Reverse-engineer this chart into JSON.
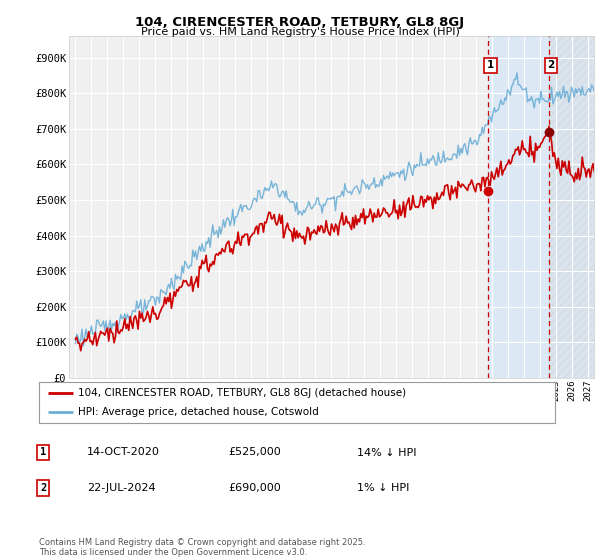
{
  "title": "104, CIRENCESTER ROAD, TETBURY, GL8 8GJ",
  "subtitle": "Price paid vs. HM Land Registry's House Price Index (HPI)",
  "ylabel_ticks": [
    "£0",
    "£100K",
    "£200K",
    "£300K",
    "£400K",
    "£500K",
    "£600K",
    "£700K",
    "£800K",
    "£900K"
  ],
  "ytick_values": [
    0,
    100000,
    200000,
    300000,
    400000,
    500000,
    600000,
    700000,
    800000,
    900000
  ],
  "ylim": [
    0,
    960000
  ],
  "xlim_start": 1994.6,
  "xlim_end": 2027.4,
  "hpi_color": "#6baed6",
  "price_color": "#cc0000",
  "marker1_year": 2020.79,
  "marker1_price": 525000,
  "marker1_label": "1",
  "marker2_year": 2024.56,
  "marker2_price": 690000,
  "marker2_label": "2",
  "legend_label1": "104, CIRENCESTER ROAD, TETBURY, GL8 8GJ (detached house)",
  "legend_label2": "HPI: Average price, detached house, Cotswold",
  "note1_num": "1",
  "note1_date": "14-OCT-2020",
  "note1_price": "£525,000",
  "note1_hpi": "14% ↓ HPI",
  "note2_num": "2",
  "note2_date": "22-JUL-2024",
  "note2_price": "£690,000",
  "note2_hpi": "1% ↓ HPI",
  "footer": "Contains HM Land Registry data © Crown copyright and database right 2025.\nThis data is licensed under the Open Government Licence v3.0.",
  "bg_color": "#ffffff",
  "plot_bg_color": "#f0f0f0",
  "grid_color": "#ffffff",
  "shade_color": "#dce9f5",
  "hatch_color": "#c8d8e8"
}
